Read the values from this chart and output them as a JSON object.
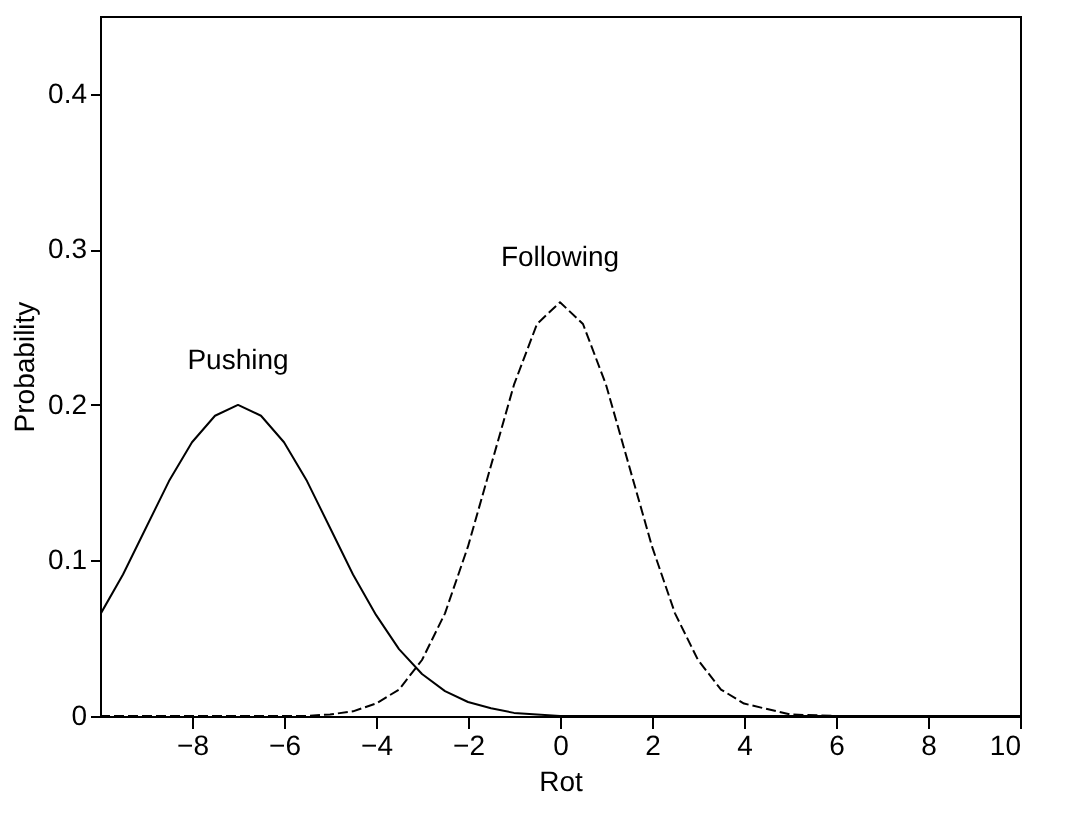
{
  "chart_data": {
    "type": "line",
    "xlabel": "Rot",
    "ylabel": "Probability",
    "xlim": [
      -10,
      10
    ],
    "ylim": [
      0,
      0.45
    ],
    "xticks": [
      -8,
      -6,
      -4,
      -2,
      0,
      2,
      4,
      6,
      8,
      10
    ],
    "yticks": [
      0,
      0.1,
      0.2,
      0.3,
      0.4
    ],
    "grid": false,
    "marker": "none",
    "x": [
      -10,
      -9.5,
      -9,
      -8.5,
      -8,
      -7.5,
      -7,
      -6.5,
      -6,
      -5.5,
      -5,
      -4.5,
      -4,
      -3.5,
      -3,
      -2.5,
      -2,
      -1.5,
      -1,
      -0.5,
      0,
      0.5,
      1,
      1.5,
      2,
      2.5,
      3,
      3.5,
      4,
      5,
      6,
      7,
      8,
      9,
      10
    ],
    "series": [
      {
        "name": "Pushing",
        "color": "#000000",
        "line_style": "solid",
        "values": [
          0.065,
          0.091,
          0.121,
          0.151,
          0.176,
          0.193,
          0.2,
          0.193,
          0.176,
          0.151,
          0.121,
          0.091,
          0.065,
          0.043,
          0.027,
          0.016,
          0.009,
          0.005,
          0.002,
          0.001,
          0,
          0,
          0,
          0,
          0,
          0,
          0,
          0,
          0,
          0,
          0,
          0,
          0,
          0,
          0
        ]
      },
      {
        "name": "Following",
        "color": "#000000",
        "line_style": "dashed",
        "values": [
          0,
          0,
          0,
          0,
          0,
          0,
          0,
          0,
          0,
          0,
          0.001,
          0.003,
          0.008,
          0.017,
          0.036,
          0.066,
          0.109,
          0.161,
          0.213,
          0.252,
          0.266,
          0.252,
          0.213,
          0.161,
          0.109,
          0.066,
          0.036,
          0.017,
          0.008,
          0.001,
          0,
          0,
          0,
          0,
          0
        ]
      }
    ]
  }
}
